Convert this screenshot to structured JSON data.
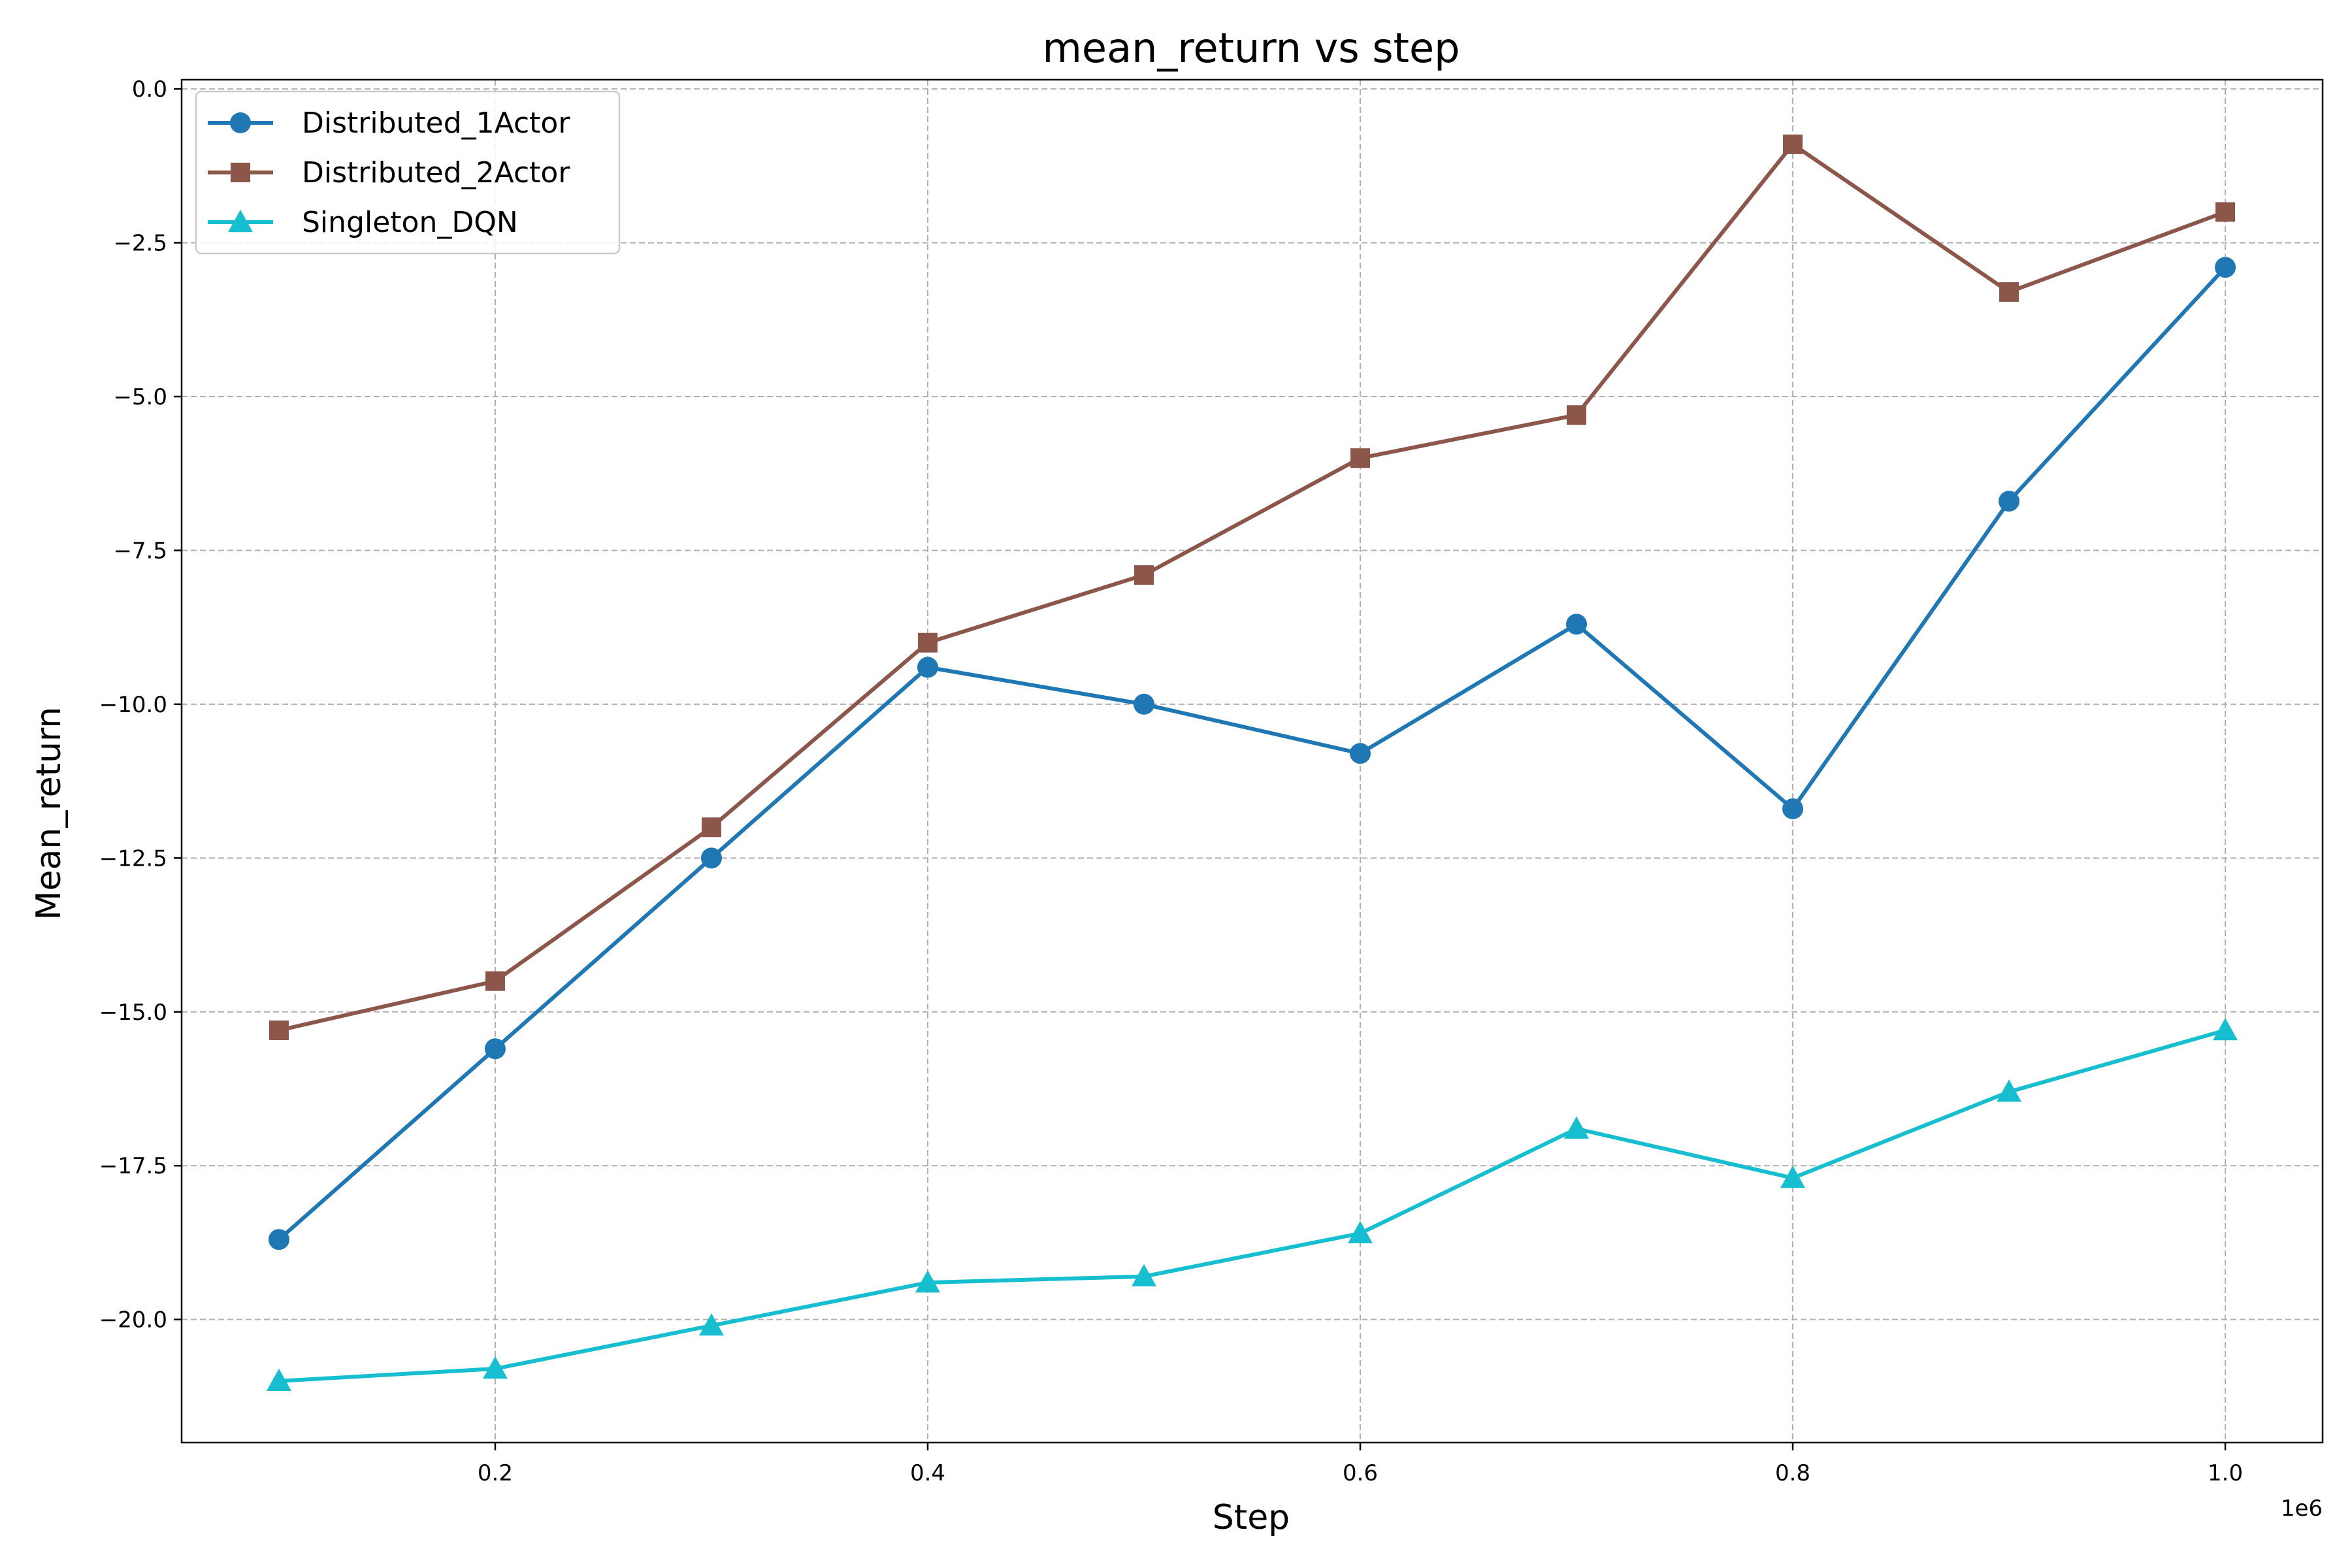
{
  "chart_data": {
    "type": "line",
    "title": "mean_return vs step",
    "xlabel": "Step",
    "ylabel": "Mean_return",
    "x_offset_label": "1e6",
    "x": [
      100000,
      200000,
      300000,
      400000,
      500000,
      600000,
      700000,
      800000,
      900000,
      1000000
    ],
    "xlim": [
      55000,
      1045000
    ],
    "ylim": [
      -22.0,
      0.15
    ],
    "x_ticks": [
      200000,
      400000,
      600000,
      800000,
      1000000
    ],
    "x_tick_labels": [
      "0.2",
      "0.4",
      "0.6",
      "0.8",
      "1.0"
    ],
    "y_ticks": [
      0.0,
      -2.5,
      -5.0,
      -7.5,
      -10.0,
      -12.5,
      -15.0,
      -17.5,
      -20.0
    ],
    "y_tick_labels": [
      "0.0",
      "−2.5",
      "−5.0",
      "−7.5",
      "−10.0",
      "−12.5",
      "−15.0",
      "−17.5",
      "−20.0"
    ],
    "grid": true,
    "legend_position": "top-left",
    "series": [
      {
        "name": "Distributed_1Actor",
        "color": "#1f77b4",
        "marker": "circle",
        "values": [
          -18.7,
          -15.6,
          -12.5,
          -9.4,
          -10.0,
          -10.8,
          -8.7,
          -11.7,
          -6.7,
          -2.9
        ]
      },
      {
        "name": "Distributed_2Actor",
        "color": "#8c564b",
        "marker": "square",
        "values": [
          -15.3,
          -14.5,
          -12.0,
          -9.0,
          -7.9,
          -6.0,
          -5.3,
          -0.9,
          -3.3,
          -2.0
        ]
      },
      {
        "name": "Singleton_DQN",
        "color": "#17becf",
        "marker": "triangle",
        "values": [
          -21.0,
          -20.8,
          -20.1,
          -19.4,
          -19.3,
          -18.6,
          -16.9,
          -17.7,
          -16.3,
          -15.3
        ]
      }
    ]
  }
}
